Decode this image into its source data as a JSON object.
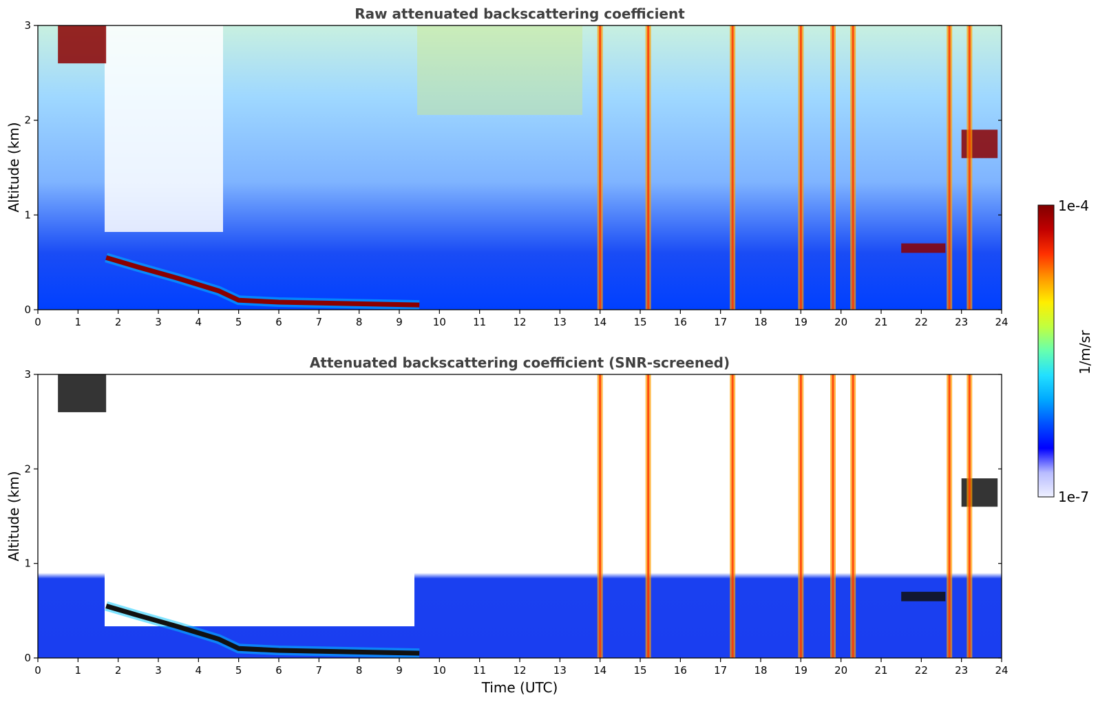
{
  "chart_data": [
    {
      "type": "heatmap",
      "title": "Raw attenuated backscattering coefficient",
      "xlabel": "",
      "ylabel": "Altitude (km)",
      "xlim": [
        0,
        24
      ],
      "ylim": [
        0,
        3
      ],
      "x_ticks": [
        "0",
        "1",
        "2",
        "3",
        "4",
        "5",
        "6",
        "7",
        "8",
        "9",
        "10",
        "11",
        "12",
        "13",
        "14",
        "15",
        "16",
        "17",
        "18",
        "19",
        "20",
        "21",
        "22",
        "23",
        "24"
      ],
      "y_ticks": [
        "0",
        "1",
        "2",
        "3"
      ],
      "colorscale": "jet (log)",
      "features": [
        {
          "name": "boundary layer top",
          "points": [
            [
              1.7,
              0.55
            ],
            [
              2.5,
              0.45
            ],
            [
              3.5,
              0.33
            ],
            [
              4.5,
              0.2
            ],
            [
              5,
              0.1
            ],
            [
              6,
              0.08
            ],
            [
              9.5,
              0.05
            ]
          ]
        },
        {
          "name": "cloud layer",
          "x": [
            0.5,
            1.7
          ],
          "y": [
            2.6,
            3.0
          ]
        },
        {
          "name": "cloud layer",
          "x": [
            21.5,
            22.6
          ],
          "y": [
            0.6,
            0.7
          ]
        },
        {
          "name": "cloud layer",
          "x": [
            23.0,
            23.9
          ],
          "y": [
            1.6,
            1.9
          ]
        },
        {
          "name": "precipitation shafts",
          "x": [
            14.0,
            15.2,
            17.3,
            19.0,
            19.8,
            20.3,
            22.7,
            23.2
          ]
        }
      ]
    },
    {
      "type": "heatmap",
      "title": "Attenuated backscattering coefficient (SNR-screened)",
      "xlabel": "Time (UTC)",
      "ylabel": "Altitude (km)",
      "xlim": [
        0,
        24
      ],
      "ylim": [
        0,
        3
      ],
      "x_ticks": [
        "0",
        "1",
        "2",
        "3",
        "4",
        "5",
        "6",
        "7",
        "8",
        "9",
        "10",
        "11",
        "12",
        "13",
        "14",
        "15",
        "16",
        "17",
        "18",
        "19",
        "20",
        "21",
        "22",
        "23",
        "24"
      ],
      "y_ticks": [
        "0",
        "1",
        "2",
        "3"
      ],
      "colorscale": "jet (log)"
    }
  ],
  "colorbar": {
    "max_label": "1e-4",
    "min_label": "1e-7",
    "label": "1/m/sr",
    "colors": [
      "#eef0ff",
      "#b8bcff",
      "#0000ff",
      "#0050ff",
      "#00a8ff",
      "#22e0ff",
      "#66ffb0",
      "#c0ff40",
      "#ffee00",
      "#ff9800",
      "#ff3000",
      "#c00000",
      "#800000"
    ]
  }
}
